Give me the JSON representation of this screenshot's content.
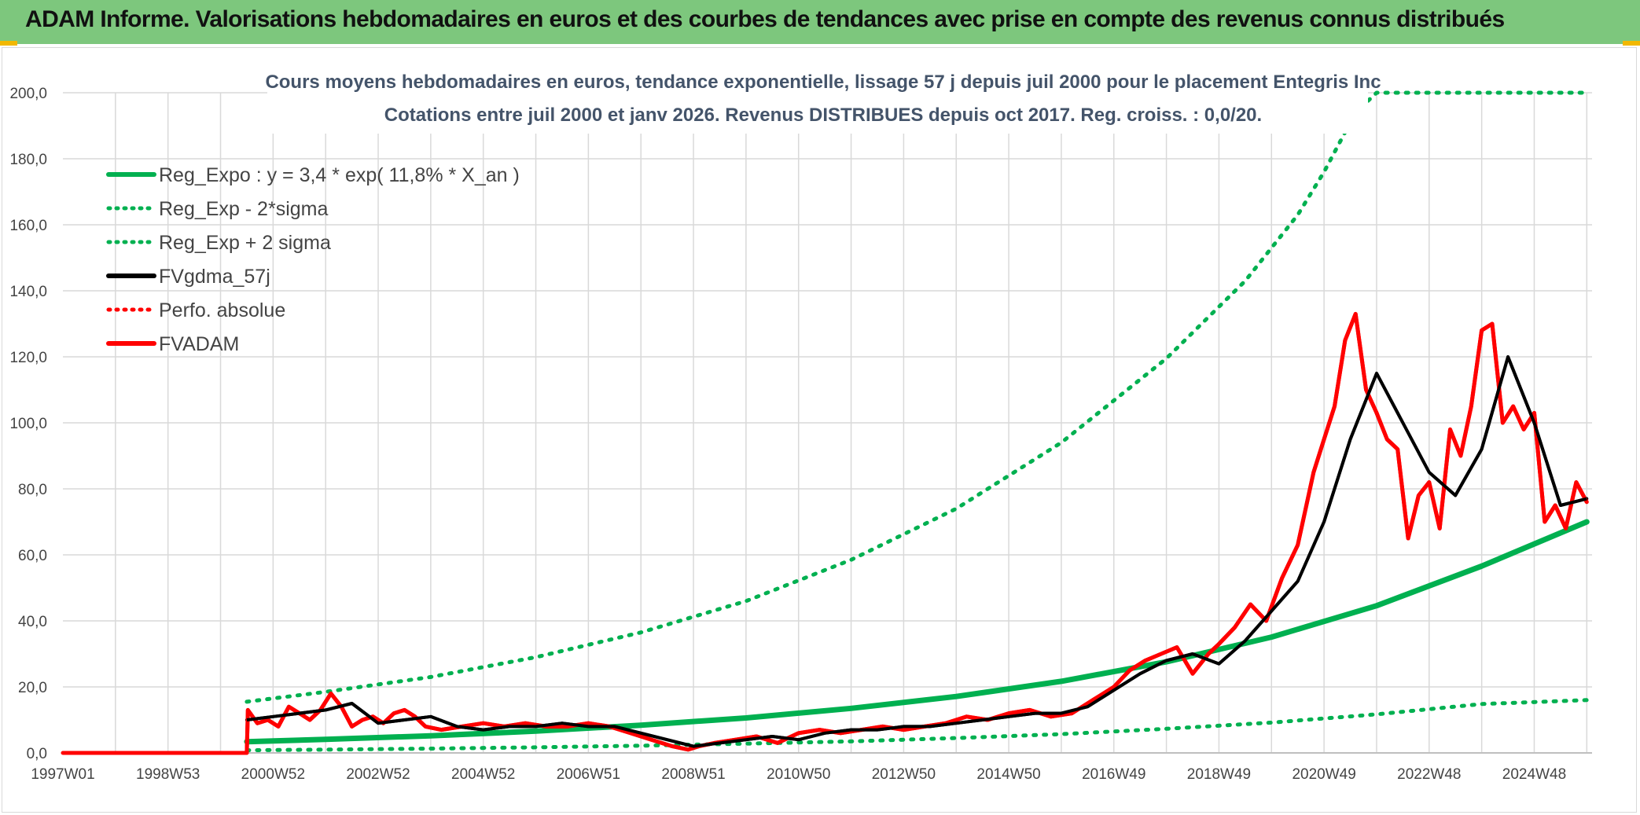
{
  "header": {
    "title": "ADAM Informe. Valorisations hebdomadaires en euros et des courbes de tendances avec prise en compte des revenus connus distribués"
  },
  "colors": {
    "header_bg": "#7dc77d",
    "accent_corner": "#f2b800",
    "trend_green": "#00b050",
    "price_red": "#ff0000",
    "smooth_black": "#000000",
    "grid": "#d9d9d9"
  },
  "chart_data": {
    "type": "line",
    "title": "Cours moyens hebdomadaires en euros, tendance exponentielle, lissage 57 j depuis juil 2000 pour le placement Entegris Inc",
    "subtitle": "Cotations entre juil 2000 et janv 2026. Revenus DISTRIBUES depuis oct 2017. Reg. croiss. : 0,0/20.",
    "xlabel": "",
    "ylabel": "",
    "ylim": [
      0,
      200
    ],
    "xlim": [
      1997.0,
      2026.1
    ],
    "y_ticks": [
      "0,0",
      "20,0",
      "40,0",
      "60,0",
      "80,0",
      "100,0",
      "120,0",
      "140,0",
      "160,0",
      "180,0",
      "200,0"
    ],
    "x_ticks": [
      {
        "label": "1997W01",
        "x": 1997.0
      },
      {
        "label": "1998W53",
        "x": 1999.0
      },
      {
        "label": "2000W52",
        "x": 2001.0
      },
      {
        "label": "2002W52",
        "x": 2003.0
      },
      {
        "label": "2004W52",
        "x": 2005.0
      },
      {
        "label": "2006W51",
        "x": 2007.0
      },
      {
        "label": "2008W51",
        "x": 2009.0
      },
      {
        "label": "2010W50",
        "x": 2011.0
      },
      {
        "label": "2012W50",
        "x": 2013.0
      },
      {
        "label": "2014W50",
        "x": 2015.0
      },
      {
        "label": "2016W49",
        "x": 2017.0
      },
      {
        "label": "2018W49",
        "x": 2019.0
      },
      {
        "label": "2020W49",
        "x": 2021.0
      },
      {
        "label": "2022W48",
        "x": 2023.0
      },
      {
        "label": "2024W48",
        "x": 2025.0
      }
    ],
    "grid": true,
    "legend": "top-left",
    "series": [
      {
        "name": "Reg_Expo : y = 3,4 * exp( 11,8% *  X_an )",
        "style": "solid",
        "color": "#00b050",
        "width": 7,
        "x": [
          2000.5,
          2002,
          2004,
          2006,
          2008,
          2010,
          2012,
          2014,
          2016,
          2018,
          2020,
          2022,
          2024,
          2026
        ],
        "y": [
          3.4,
          4.1,
          5.2,
          6.6,
          8.4,
          10.6,
          13.5,
          17.1,
          21.7,
          27.6,
          35.1,
          44.6,
          56.6,
          70.0
        ]
      },
      {
        "name": "Reg_Exp - 2*sigma",
        "style": "dotted",
        "color": "#00b050",
        "width": 5,
        "x": [
          2000.5,
          2002,
          2004,
          2006,
          2008,
          2010,
          2012,
          2014,
          2016,
          2018,
          2020,
          2022,
          2024,
          2026
        ],
        "y": [
          0.8,
          1.0,
          1.3,
          1.7,
          2.2,
          2.8,
          3.5,
          4.5,
          5.7,
          7.3,
          9.2,
          11.7,
          14.8,
          16.0
        ]
      },
      {
        "name": "Reg_Exp + 2 sigma",
        "style": "dotted",
        "color": "#00b050",
        "width": 5,
        "x": [
          2000.5,
          2002,
          2004,
          2006,
          2008,
          2010,
          2012,
          2014,
          2016,
          2018,
          2019.5,
          2020.5,
          2021,
          2021.6,
          2022,
          2026
        ],
        "y": [
          15.5,
          18.5,
          23.0,
          29.0,
          36.5,
          46.0,
          58.5,
          74.0,
          94.0,
          119.5,
          143.0,
          163.0,
          176.0,
          194.0,
          200.0,
          200.0
        ]
      },
      {
        "name": "FVgdma_57j",
        "style": "solid",
        "color": "#000000",
        "width": 4,
        "x": [
          2000.5,
          2001,
          2001.5,
          2002,
          2002.5,
          2003,
          2003.5,
          2004,
          2004.5,
          2005,
          2005.5,
          2006,
          2006.5,
          2007,
          2007.5,
          2008,
          2008.5,
          2009,
          2009.5,
          2010,
          2010.5,
          2011,
          2011.5,
          2012,
          2012.5,
          2013,
          2013.5,
          2014,
          2014.5,
          2015,
          2015.5,
          2016,
          2016.5,
          2017,
          2017.5,
          2018,
          2018.5,
          2019,
          2019.5,
          2020,
          2020.5,
          2021,
          2021.5,
          2022,
          2022.5,
          2023,
          2023.5,
          2024,
          2024.5,
          2025,
          2025.5,
          2026
        ],
        "y": [
          10,
          11,
          12,
          13,
          15,
          9,
          10,
          11,
          8,
          7,
          8,
          8,
          9,
          8,
          8,
          6,
          4,
          2,
          3,
          4,
          5,
          4,
          6,
          7,
          7,
          8,
          8,
          9,
          10,
          11,
          12,
          12,
          14,
          19,
          24,
          28,
          30,
          27,
          34,
          43,
          52,
          70,
          95,
          115,
          100,
          85,
          78,
          92,
          120,
          100,
          75,
          77
        ]
      },
      {
        "name": "Perfo. absolue",
        "style": "dotted",
        "color": "#ff0000",
        "width": 4,
        "x": [
          1997.0,
          2000.5
        ],
        "y": [
          0,
          0
        ]
      },
      {
        "name": "FVADAM",
        "style": "solid",
        "color": "#ff0000",
        "width": 5,
        "x": [
          1997.0,
          2000.5,
          2000.52,
          2000.7,
          2000.9,
          2001.1,
          2001.3,
          2001.5,
          2001.7,
          2001.9,
          2002.1,
          2002.3,
          2002.5,
          2002.7,
          2002.9,
          2003.1,
          2003.3,
          2003.5,
          2003.7,
          2003.9,
          2004.2,
          2004.6,
          2005.0,
          2005.4,
          2005.8,
          2006.2,
          2006.6,
          2007.0,
          2007.4,
          2007.8,
          2008.2,
          2008.6,
          2008.9,
          2009.1,
          2009.4,
          2009.8,
          2010.2,
          2010.6,
          2011.0,
          2011.4,
          2011.8,
          2012.2,
          2012.6,
          2013.0,
          2013.4,
          2013.8,
          2014.2,
          2014.6,
          2015.0,
          2015.4,
          2015.8,
          2016.2,
          2016.6,
          2017.0,
          2017.3,
          2017.6,
          2017.9,
          2018.2,
          2018.5,
          2018.8,
          2019.0,
          2019.3,
          2019.6,
          2019.9,
          2020.2,
          2020.5,
          2020.8,
          2021.0,
          2021.2,
          2021.4,
          2021.6,
          2021.8,
          2022.0,
          2022.2,
          2022.4,
          2022.6,
          2022.8,
          2023.0,
          2023.2,
          2023.4,
          2023.6,
          2023.8,
          2024.0,
          2024.2,
          2024.4,
          2024.6,
          2024.8,
          2025.0,
          2025.2,
          2025.4,
          2025.6,
          2025.8,
          2026.0
        ],
        "y": [
          0,
          0,
          13,
          9,
          10,
          8,
          14,
          12,
          10,
          13,
          18,
          14,
          8,
          10,
          11,
          9,
          12,
          13,
          11,
          8,
          7,
          8,
          9,
          8,
          9,
          8,
          8,
          9,
          8,
          6,
          4,
          2,
          1,
          2,
          3,
          4,
          5,
          3,
          6,
          7,
          6,
          7,
          8,
          7,
          8,
          9,
          11,
          10,
          12,
          13,
          11,
          12,
          16,
          20,
          25,
          28,
          30,
          32,
          24,
          30,
          33,
          38,
          45,
          40,
          53,
          63,
          85,
          95,
          105,
          125,
          133,
          110,
          103,
          95,
          92,
          65,
          78,
          82,
          68,
          98,
          90,
          105,
          128,
          130,
          100,
          105,
          98,
          103,
          70,
          75,
          68,
          82,
          76
        ]
      }
    ]
  }
}
